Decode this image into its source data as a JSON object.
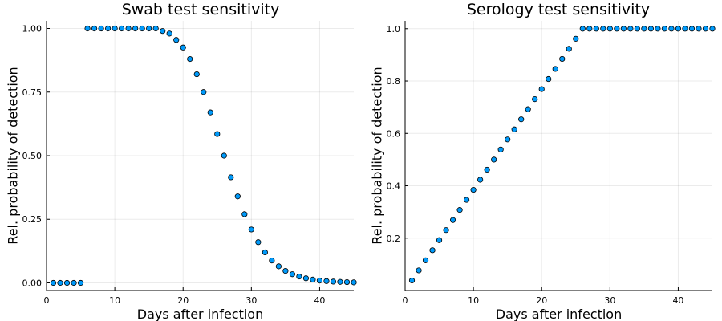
{
  "chart_data": [
    {
      "type": "scatter",
      "title": "Swab test sensitivity",
      "xlabel": "Days after infection",
      "ylabel": "Rel. probability of detection",
      "xlim": [
        0,
        45
      ],
      "ylim": [
        -0.03,
        1.03
      ],
      "grid": true,
      "legend": "none",
      "xticks": [
        0,
        10,
        20,
        30,
        40
      ],
      "yticks": [
        0.0,
        0.25,
        0.5,
        0.75,
        1.0
      ],
      "ytick_labels": [
        "0.00",
        "0.25",
        "0.50",
        "0.75",
        "1.00"
      ],
      "xtick_labels": [
        "0",
        "10",
        "20",
        "30",
        "40"
      ],
      "color": "#009AFA",
      "series": [
        {
          "x": [
            1,
            2,
            3,
            4,
            5,
            6,
            7,
            8,
            9,
            10,
            11,
            12,
            13,
            14,
            15,
            16,
            17,
            18,
            19,
            20,
            21,
            22,
            23,
            24,
            25,
            26,
            27,
            28,
            29,
            30,
            31,
            32,
            33,
            34,
            35,
            36,
            37,
            38,
            39,
            40,
            41,
            42,
            43,
            44,
            45
          ],
          "y": [
            0,
            0,
            0,
            0,
            0,
            1,
            1,
            1,
            1,
            1,
            1,
            1,
            1,
            1,
            1,
            1,
            0.99,
            0.98,
            0.955,
            0.925,
            0.88,
            0.82,
            0.75,
            0.67,
            0.585,
            0.5,
            0.415,
            0.34,
            0.27,
            0.21,
            0.16,
            0.12,
            0.088,
            0.065,
            0.047,
            0.034,
            0.025,
            0.018,
            0.013,
            0.009,
            0.007,
            0.005,
            0.004,
            0.003,
            0.002
          ]
        }
      ]
    },
    {
      "type": "scatter",
      "title": "Serology test sensitivity",
      "xlabel": "Days after infection",
      "ylabel": "Rel. probability of detection",
      "xlim": [
        0,
        45
      ],
      "ylim": [
        0.0,
        1.03
      ],
      "grid": true,
      "legend": "none",
      "xticks": [
        0,
        10,
        20,
        30,
        40
      ],
      "yticks": [
        0.2,
        0.4,
        0.6,
        0.8,
        1.0
      ],
      "ytick_labels": [
        "0.2",
        "0.4",
        "0.6",
        "0.8",
        "1.0"
      ],
      "xtick_labels": [
        "0",
        "10",
        "20",
        "30",
        "40"
      ],
      "color": "#009AFA",
      "series": [
        {
          "x": [
            1,
            2,
            3,
            4,
            5,
            6,
            7,
            8,
            9,
            10,
            11,
            12,
            13,
            14,
            15,
            16,
            17,
            18,
            19,
            20,
            21,
            22,
            23,
            24,
            25,
            26,
            27,
            28,
            29,
            30,
            31,
            32,
            33,
            34,
            35,
            36,
            37,
            38,
            39,
            40,
            41,
            42,
            43,
            44,
            45
          ],
          "y": [
            0.0385,
            0.0769,
            0.1154,
            0.1538,
            0.1923,
            0.2308,
            0.2692,
            0.3077,
            0.3462,
            0.3846,
            0.4231,
            0.4615,
            0.5,
            0.5385,
            0.5769,
            0.6154,
            0.6538,
            0.6923,
            0.7308,
            0.7692,
            0.8077,
            0.8462,
            0.8846,
            0.9231,
            0.9615,
            1,
            1,
            1,
            1,
            1,
            1,
            1,
            1,
            1,
            1,
            1,
            1,
            1,
            1,
            1,
            1,
            1,
            1,
            1,
            1
          ]
        }
      ]
    }
  ]
}
